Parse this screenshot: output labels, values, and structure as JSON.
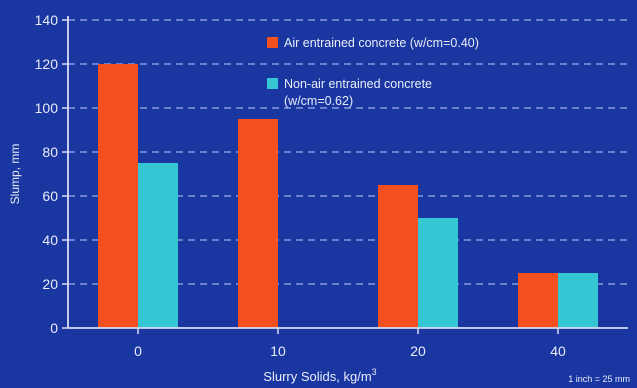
{
  "chart_data": {
    "type": "bar",
    "categories": [
      "0",
      "10",
      "20",
      "40"
    ],
    "series": [
      {
        "name": "Air entrained concrete (w/cm=0.40)",
        "values": [
          120,
          95,
          65,
          25
        ],
        "color": "#f44f1f"
      },
      {
        "name": "Non-air entrained concrete (w/cm=0.62)",
        "values": [
          75,
          null,
          50,
          25
        ],
        "color": "#35c6d4"
      }
    ],
    "title": "",
    "xlabel": "Slurry Solids, kg/m",
    "xlabel_superscript": "3",
    "ylabel": "Slump, mm",
    "ylim": [
      0,
      140
    ],
    "yticks": [
      0,
      20,
      40,
      60,
      80,
      100,
      120,
      140
    ],
    "grid": true,
    "legend_placement": "top-right",
    "note": "1 inch = 25 mm",
    "colors": {
      "background": "#1a36a1",
      "axis": "#d8ddf0",
      "grid": "#9fb0ea",
      "text": "#e8ecf8"
    }
  }
}
